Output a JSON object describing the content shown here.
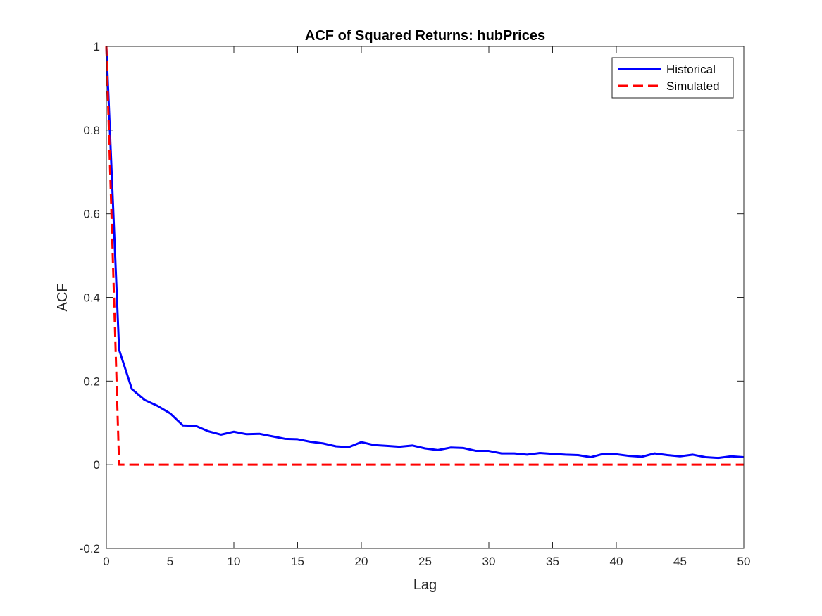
{
  "chart_data": {
    "type": "line",
    "title": "ACF of Squared Returns: hubPrices",
    "xlabel": "Lag",
    "ylabel": "ACF",
    "xlim": [
      0,
      50
    ],
    "ylim": [
      -0.2,
      1
    ],
    "xticks": [
      0,
      5,
      10,
      15,
      20,
      25,
      30,
      35,
      40,
      45,
      50
    ],
    "yticks": [
      -0.2,
      0,
      0.2,
      0.4,
      0.6,
      0.8,
      1
    ],
    "ytick_labels": [
      "-0.2",
      "0",
      "0.2",
      "0.4",
      "0.6",
      "0.8",
      "1"
    ],
    "grid": false,
    "legend_position": "top-right",
    "x": [
      0,
      1,
      2,
      3,
      4,
      5,
      6,
      7,
      8,
      9,
      10,
      11,
      12,
      13,
      14,
      15,
      16,
      17,
      18,
      19,
      20,
      21,
      22,
      23,
      24,
      25,
      26,
      27,
      28,
      29,
      30,
      31,
      32,
      33,
      34,
      35,
      36,
      37,
      38,
      39,
      40,
      41,
      42,
      43,
      44,
      45,
      46,
      47,
      48,
      49,
      50
    ],
    "series": [
      {
        "name": "Historical",
        "color": "#0000ff",
        "style": "solid",
        "values": [
          1.0,
          0.275,
          0.181,
          0.155,
          0.141,
          0.123,
          0.094,
          0.093,
          0.08,
          0.072,
          0.079,
          0.073,
          0.074,
          0.068,
          0.062,
          0.061,
          0.055,
          0.051,
          0.044,
          0.042,
          0.054,
          0.047,
          0.045,
          0.043,
          0.046,
          0.039,
          0.035,
          0.041,
          0.04,
          0.033,
          0.033,
          0.027,
          0.027,
          0.024,
          0.028,
          0.026,
          0.024,
          0.023,
          0.018,
          0.026,
          0.025,
          0.021,
          0.019,
          0.027,
          0.023,
          0.02,
          0.024,
          0.018,
          0.016,
          0.02,
          0.018
        ]
      },
      {
        "name": "Simulated",
        "color": "#ff0000",
        "style": "dashed",
        "values": [
          1.0,
          0.0,
          0.0,
          0.0,
          0.0,
          0.0,
          0.0,
          0.0,
          0.0,
          0.0,
          0.0,
          0.0,
          0.0,
          0.0,
          0.0,
          0.0,
          0.0,
          0.0,
          0.0,
          0.0,
          0.0,
          0.0,
          0.0,
          0.0,
          0.0,
          0.0,
          0.0,
          0.0,
          0.0,
          0.0,
          0.0,
          0.0,
          0.0,
          0.0,
          0.0,
          0.0,
          0.0,
          0.0,
          0.0,
          0.0,
          0.0,
          0.0,
          0.0,
          0.0,
          0.0,
          0.0,
          0.0,
          0.0,
          0.0,
          0.0,
          0.0
        ]
      }
    ]
  }
}
